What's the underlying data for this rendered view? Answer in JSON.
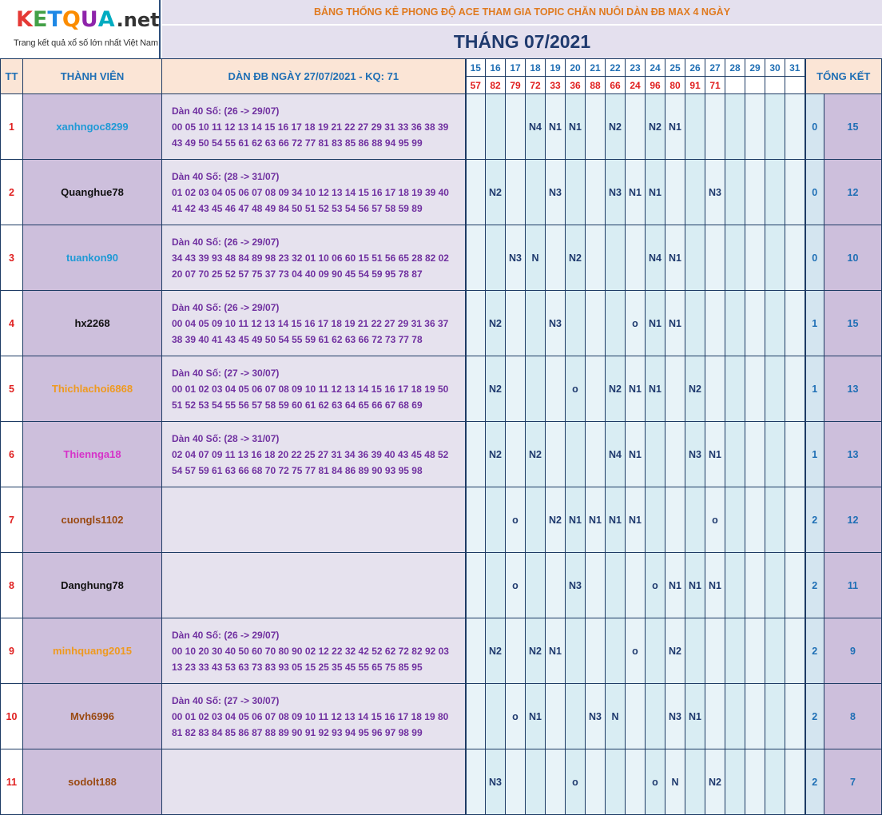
{
  "logo": {
    "text": "KETQUA.net",
    "tagline": "Trang kết quả xổ số lớn nhất Việt Nam",
    "letters": [
      "K",
      "E",
      "T",
      "Q",
      "U",
      "A"
    ],
    "suffix": ".net"
  },
  "title": "BẢNG THỐNG KÊ PHONG ĐỘ ACE THAM GIA TOPIC CHĂN NUÔI DÀN ĐB MAX 4 NGÀY",
  "month": "THÁNG 07/2021",
  "headers": {
    "tt": "TT",
    "member": "THÀNH VIÊN",
    "dan": "DÀN ĐB NGÀY 27/07/2021 - KQ: 71",
    "total": "TỔNG KẾT"
  },
  "days": [
    "15",
    "16",
    "17",
    "18",
    "19",
    "20",
    "21",
    "22",
    "23",
    "24",
    "25",
    "26",
    "27",
    "28",
    "29",
    "30",
    "31"
  ],
  "results": [
    "57",
    "82",
    "79",
    "72",
    "33",
    "36",
    "88",
    "66",
    "24",
    "96",
    "80",
    "91",
    "71",
    "",
    "",
    "",
    ""
  ],
  "colors": {
    "blue": "#1f9ad6",
    "black": "#111111",
    "orange": "#ef9a1f",
    "magenta": "#d633c9",
    "brown": "#9a4a12"
  },
  "rows": [
    {
      "tt": "1",
      "name": "xanhngoc8299",
      "color": "blue",
      "dan_title": "Dàn 40 Số: (26 -> 29/07)",
      "dan_line1": "00 05 10 11 12 13 14 15 16 17 18 19 21 22 27 29 31 33 36 38 39",
      "dan_line2": "43 49 50 54 55 61 62 63 66 72 77 81 83 85 86 88 94 95 99",
      "marks": [
        "",
        "",
        "",
        "N4",
        "N1",
        "N1",
        "",
        "N2",
        "",
        "N2",
        "N1",
        "",
        "",
        "",
        "",
        "",
        ""
      ],
      "won": "0",
      "total": "15"
    },
    {
      "tt": "2",
      "name": "Quanghue78",
      "color": "black",
      "dan_title": "Dàn 40 Số: (28 -> 31/07)",
      "dan_line1": "01 02 03 04 05 06 07 08 09 34 10 12 13 14 15 16 17 18 19 39 40",
      "dan_line2": "41 42 43 45 46 47 48 49 84 50 51 52 53 54 56 57 58 59 89",
      "marks": [
        "",
        "N2",
        "",
        "",
        "N3",
        "",
        "",
        "N3",
        "N1",
        "N1",
        "",
        "",
        "N3",
        "",
        "",
        "",
        ""
      ],
      "won": "0",
      "total": "12"
    },
    {
      "tt": "3",
      "name": "tuankon90",
      "color": "blue",
      "dan_title": "Dàn 40 Số: (26 -> 29/07)",
      "dan_line1": "34 43 39 93 48 84 89 98 23 32 01 10 06 60 15 51 56 65 28 82 02",
      "dan_line2": "20 07 70 25 52 57 75 37 73 04 40 09 90 45 54 59 95 78 87",
      "marks": [
        "",
        "",
        "N3",
        "N",
        "",
        "N2",
        "",
        "",
        "",
        "N4",
        "N1",
        "",
        "",
        "",
        "",
        "",
        ""
      ],
      "won": "0",
      "total": "10"
    },
    {
      "tt": "4",
      "name": "hx2268",
      "color": "black",
      "dan_title": "Dàn 40 Số: (26 -> 29/07)",
      "dan_line1": "00 04 05 09 10 11 12 13 14 15 16 17 18 19 21 22 27 29 31 36 37",
      "dan_line2": "38 39 40 41 43 45 49 50 54 55 59 61 62 63 66 72 73 77 78",
      "marks": [
        "",
        "N2",
        "",
        "",
        "N3",
        "",
        "",
        "",
        "o",
        "N1",
        "N1",
        "",
        "",
        "",
        "",
        "",
        ""
      ],
      "won": "1",
      "total": "15"
    },
    {
      "tt": "5",
      "name": "Thichlachoi6868",
      "color": "orange",
      "dan_title": "Dàn 40 Số: (27 -> 30/07)",
      "dan_line1": "00 01 02 03 04 05 06 07 08 09 10 11 12 13 14 15 16 17 18 19 50",
      "dan_line2": "51 52 53 54 55 56 57 58 59 60 61 62 63 64 65 66 67 68 69",
      "marks": [
        "",
        "N2",
        "",
        "",
        "",
        "o",
        "",
        "N2",
        "N1",
        "N1",
        "",
        "N2",
        "",
        "",
        "",
        "",
        ""
      ],
      "won": "1",
      "total": "13"
    },
    {
      "tt": "6",
      "name": "Thiennga18",
      "color": "magenta",
      "dan_title": "Dàn 40 Số: (28 -> 31/07)",
      "dan_line1": "02 04 07 09 11 13 16 18 20 22 25 27 31 34 36 39 40 43 45 48 52",
      "dan_line2": "54 57 59 61 63 66 68 70 72 75 77 81 84 86 89 90 93 95 98",
      "marks": [
        "",
        "N2",
        "",
        "N2",
        "",
        "",
        "",
        "N4",
        "N1",
        "",
        "",
        "N3",
        "N1",
        "",
        "",
        "",
        ""
      ],
      "won": "1",
      "total": "13"
    },
    {
      "tt": "7",
      "name": "cuongls1102",
      "color": "brown",
      "dan_title": "",
      "dan_line1": "",
      "dan_line2": "",
      "marks": [
        "",
        "",
        "o",
        "",
        "N2",
        "N1",
        "N1",
        "N1",
        "N1",
        "",
        "",
        "",
        "o",
        "",
        "",
        "",
        ""
      ],
      "won": "2",
      "total": "12"
    },
    {
      "tt": "8",
      "name": "Danghung78",
      "color": "black",
      "dan_title": "",
      "dan_line1": "",
      "dan_line2": "",
      "marks": [
        "",
        "",
        "o",
        "",
        "",
        "N3",
        "",
        "",
        "",
        "o",
        "N1",
        "N1",
        "N1",
        "",
        "",
        "",
        ""
      ],
      "won": "2",
      "total": "11"
    },
    {
      "tt": "9",
      "name": "minhquang2015",
      "color": "orange",
      "dan_title": "Dàn 40 Số: (26 -> 29/07)",
      "dan_line1": "00 10 20 30 40 50 60 70 80 90 02 12 22 32 42 52 62 72 82 92 03",
      "dan_line2": "13 23 33 43 53 63 73 83 93 05 15 25 35 45 55 65 75 85 95",
      "marks": [
        "",
        "N2",
        "",
        "N2",
        "N1",
        "",
        "",
        "",
        "o",
        "",
        "N2",
        "",
        "",
        "",
        "",
        "",
        ""
      ],
      "won": "2",
      "total": "9"
    },
    {
      "tt": "10",
      "name": "Mvh6996",
      "color": "brown",
      "dan_title": "Dàn 40 Số: (27 -> 30/07)",
      "dan_line1": "00 01 02 03 04 05 06 07 08 09 10 11 12 13 14 15 16 17 18 19 80",
      "dan_line2": "81 82 83 84 85 86 87 88 89 90 91 92 93 94 95 96 97 98 99",
      "marks": [
        "",
        "",
        "o",
        "N1",
        "",
        "",
        "N3",
        "N",
        "",
        "",
        "N3",
        "N1",
        "",
        "",
        "",
        "",
        ""
      ],
      "won": "2",
      "total": "8"
    },
    {
      "tt": "11",
      "name": "sodolt188",
      "color": "brown",
      "dan_title": "",
      "dan_line1": "",
      "dan_line2": "",
      "marks": [
        "",
        "N3",
        "",
        "",
        "",
        "o",
        "",
        "",
        "",
        "o",
        "N",
        "",
        "N2",
        "",
        "",
        "",
        ""
      ],
      "won": "2",
      "total": "7"
    }
  ]
}
